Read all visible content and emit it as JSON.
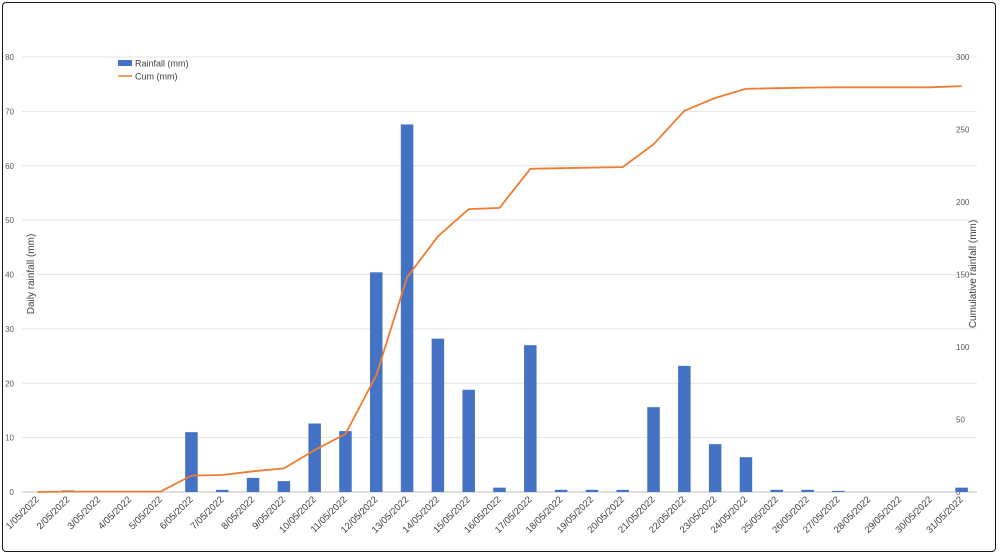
{
  "chart_data": {
    "type": "bar+line",
    "title": "",
    "ylabel": "Daily rainfall (mm)",
    "y2label": "Cumulative rainfall (mm)",
    "ylim": [
      0,
      80
    ],
    "yticks": [
      0,
      10,
      20,
      30,
      40,
      50,
      60,
      70,
      80
    ],
    "y2lim": [
      0,
      300
    ],
    "y2ticks": [
      0,
      50,
      100,
      150,
      200,
      250,
      300
    ],
    "grid": true,
    "legend_position": "top-left",
    "categories": [
      "1/05/2022",
      "2/05/2022",
      "3/05/2022",
      "4/05/2022",
      "5/05/2022",
      "6/05/2022",
      "7/05/2022",
      "8/05/2022",
      "9/05/2022",
      "10/05/2022",
      "11/05/2022",
      "12/05/2022",
      "13/05/2022",
      "14/05/2022",
      "15/05/2022",
      "16/05/2022",
      "17/05/2022",
      "18/05/2022",
      "19/05/2022",
      "20/05/2022",
      "21/05/2022",
      "22/05/2022",
      "23/05/2022",
      "24/05/2022",
      "25/05/2022",
      "26/05/2022",
      "27/05/2022",
      "28/05/2022",
      "29/05/2022",
      "30/05/2022",
      "31/05/2022"
    ],
    "series": [
      {
        "name": "Rainfall (mm)",
        "type": "bar",
        "axis": "left",
        "color": "#4472C4",
        "values": [
          0,
          0.3,
          0,
          0,
          0,
          11,
          0.4,
          2.6,
          2,
          12.6,
          11.2,
          40.4,
          67.6,
          28.2,
          18.8,
          0.8,
          27,
          0.4,
          0.4,
          0.4,
          15.6,
          23.2,
          8.8,
          6.4,
          0.4,
          0.4,
          0.2,
          0,
          0,
          0,
          0.8
        ]
      },
      {
        "name": "Cum (mm)",
        "type": "line",
        "axis": "right",
        "color": "#ED7D31",
        "values": [
          0,
          0.3,
          0.3,
          0.3,
          0.3,
          11.3,
          11.7,
          14.3,
          16.3,
          28.9,
          40.1,
          80.5,
          148.1,
          176.3,
          195.1,
          195.9,
          222.9,
          223.3,
          223.7,
          224.1,
          239.7,
          262.9,
          271.7,
          278.1,
          278.5,
          278.9,
          279.1,
          279.1,
          279.1,
          279.1,
          279.9
        ]
      }
    ]
  }
}
